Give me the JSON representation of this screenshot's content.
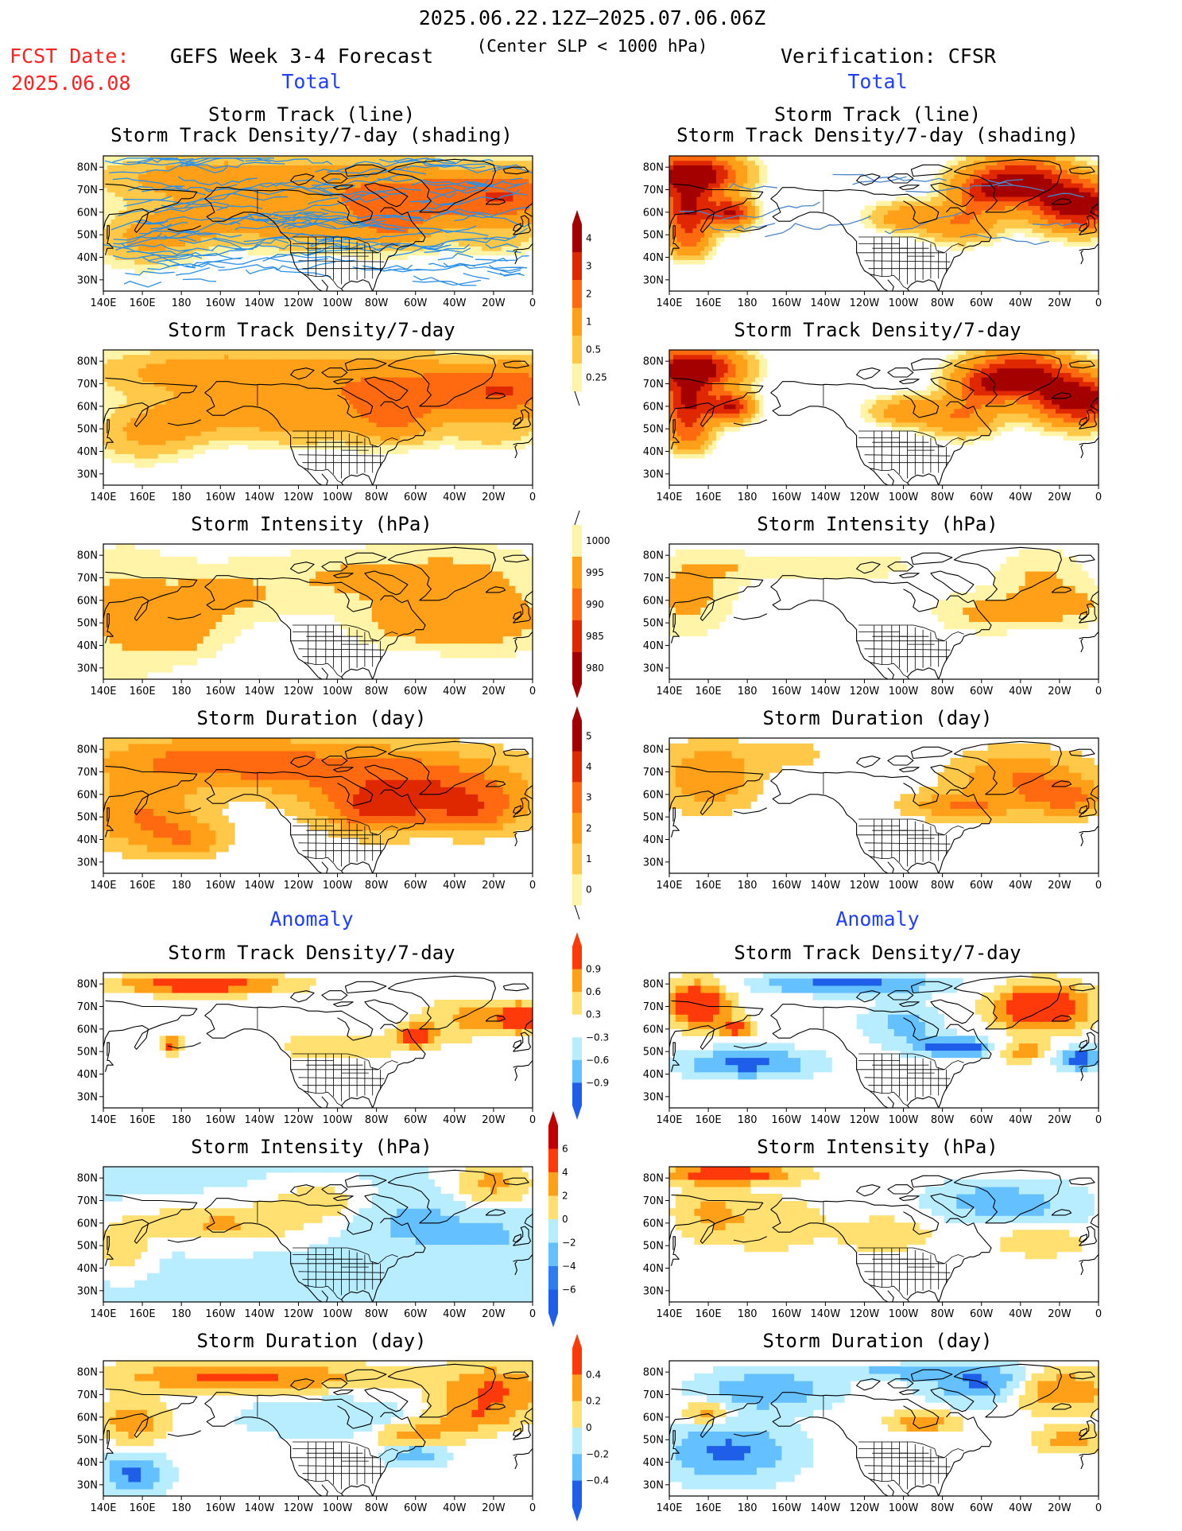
{
  "header": {
    "period": "2025.06.22.12Z–2025.07.06.06Z",
    "criteria": "(Center SLP < 1000 hPa)",
    "fcst_label": "FCST Date:",
    "fcst_date": "2025.06.08",
    "left_title": "GEFS Week 3-4 Forecast",
    "right_title": "Verification: CFSR"
  },
  "sections": {
    "total": "Total",
    "anomaly": "Anomaly"
  },
  "axes": {
    "lon_ticks": [
      "140E",
      "160E",
      "180",
      "160W",
      "140W",
      "120W",
      "100W",
      "80W",
      "60W",
      "40W",
      "20W",
      "0"
    ],
    "lat_ticks": [
      "80N",
      "70N",
      "60N",
      "50N",
      "40N",
      "30N"
    ]
  },
  "panel_titles": {
    "track_line": "Storm Track (line)",
    "track_shading": "Storm Track Density/7-day (shading)",
    "density": "Storm Track Density/7-day",
    "intensity": "Storm Intensity (hPa)",
    "duration": "Storm Duration (day)"
  },
  "colorbars": {
    "density_total": {
      "labels": [
        "4",
        "3",
        "2",
        "1",
        "0.5",
        "0.25"
      ],
      "colors": [
        "#a50000",
        "#e02800",
        "#ff6a10",
        "#ffa018",
        "#ffc848",
        "#fff4a8"
      ]
    },
    "intensity_total": {
      "labels": [
        "1000",
        "995",
        "990",
        "985",
        "980"
      ],
      "colors": [
        "#fff4a8",
        "#ffa018",
        "#ff6a10",
        "#e02800",
        "#a50000"
      ]
    },
    "duration_total": {
      "labels": [
        "5",
        "4",
        "3",
        "2",
        "1",
        "0"
      ],
      "colors": [
        "#a50000",
        "#e02800",
        "#ff6a10",
        "#ffa018",
        "#ffc848",
        "#fff4a8"
      ]
    },
    "density_anom": {
      "labels": [
        "0.9",
        "0.6",
        "0.3",
        "−0.3",
        "−0.6",
        "−0.9"
      ],
      "colors": [
        "#ff3a0a",
        "#ffa018",
        "#ffe070",
        "#ffffff",
        "#b8ecff",
        "#64c0ff",
        "#1e5ee8"
      ]
    },
    "intensity_anom": {
      "labels": [
        "6",
        "4",
        "2",
        "0",
        "−2",
        "−4",
        "−6"
      ],
      "colors": [
        "#c00000",
        "#ff3a0a",
        "#ffa018",
        "#ffe070",
        "#b8ecff",
        "#64c0ff",
        "#2c7ef0",
        "#1e5ee8"
      ]
    },
    "duration_anom": {
      "labels": [
        "0.4",
        "0.2",
        "0",
        "−0.2",
        "−0.4"
      ],
      "colors": [
        "#ff3a0a",
        "#ffa018",
        "#ffe070",
        "#b8ecff",
        "#64c0ff",
        "#1e5ee8"
      ]
    }
  },
  "palette": {
    "density": [
      "#fff4a8",
      "#ffc848",
      "#ffa018",
      "#ff6a10",
      "#e02800",
      "#a50000"
    ],
    "anom_pos": [
      "#ffe070",
      "#ffa018",
      "#ff3a0a"
    ],
    "anom_neg": [
      "#b8ecff",
      "#64c0ff",
      "#1e5ee8"
    ],
    "track_line": "#2a8fe6"
  }
}
